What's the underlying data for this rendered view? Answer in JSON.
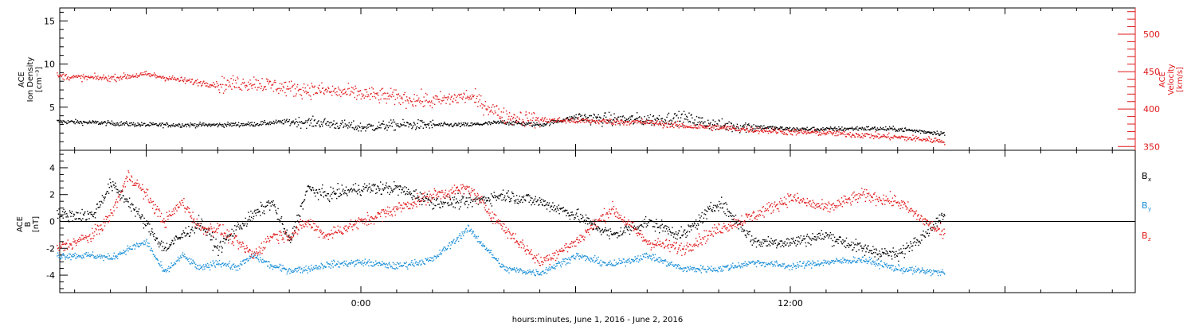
{
  "chart_data": [
    {
      "type": "scatter",
      "panel": "top",
      "xlabel": "hours:minutes, June  1, 2016 - June  2, 2016",
      "x_tick_labels": [
        "0:00",
        "12:00"
      ],
      "left_axis": {
        "label_lines": [
          "ACE",
          "Ion Density",
          "[cm⁻³]"
        ],
        "ylim": [
          0,
          16.5
        ],
        "tick_labels": [
          "5",
          "10",
          "15"
        ]
      },
      "right_axis": {
        "label_lines": [
          "ACE",
          "Velocity",
          "[km/s]"
        ],
        "ylim": [
          345,
          535
        ],
        "tick_labels": [
          "350",
          "400",
          "450",
          "500"
        ],
        "color": "#e0191b"
      },
      "series": [
        {
          "color": "#000000",
          "axis": "left",
          "x_hours": [
            -8.5,
            -7,
            -6,
            -5,
            -4,
            -3,
            -2,
            -1,
            0,
            1,
            2,
            3,
            4,
            5,
            6,
            7,
            8,
            9,
            10,
            11,
            12,
            13,
            14,
            15,
            16.3
          ],
          "values": [
            3.4,
            3.2,
            3.0,
            3.0,
            3.0,
            3.1,
            3.4,
            3.2,
            2.7,
            3.0,
            3.0,
            3.0,
            3.3,
            3.0,
            3.9,
            3.6,
            3.6,
            3.8,
            2.9,
            2.8,
            2.5,
            2.5,
            2.6,
            2.5,
            2.0
          ]
        },
        {
          "color": "#e0191b",
          "axis": "right",
          "x_hours": [
            -8.5,
            -8,
            -7,
            -6,
            -5,
            -4,
            -3,
            -2,
            -1,
            0,
            1,
            2,
            3,
            4,
            5,
            6,
            7,
            8,
            9,
            10,
            11,
            12,
            13,
            14,
            15,
            16.3
          ],
          "values": [
            445,
            443,
            442,
            447,
            439,
            433,
            436,
            428,
            425,
            421,
            416,
            411,
            418,
            391,
            386,
            385,
            384,
            383,
            378,
            376,
            373,
            370,
            369,
            366,
            363,
            358
          ]
        }
      ]
    },
    {
      "type": "scatter",
      "panel": "bottom",
      "xlabel": "hours:minutes, June  1, 2016 - June  2, 2016",
      "x_tick_labels": [
        "0:00",
        "12:00"
      ],
      "ylabel_lines": [
        "ACE",
        "B",
        "[nT]"
      ],
      "ylim": [
        -5.3,
        5.3
      ],
      "tick_labels": [
        "-4",
        "-2",
        "0",
        "2",
        "4"
      ],
      "legend": [
        "B",
        "B",
        "B"
      ],
      "legend_subscripts": [
        "x",
        "y",
        "z"
      ],
      "legend_placement": "right",
      "series": [
        {
          "name": "Bx",
          "color": "#000000",
          "x_hours": [
            -8.5,
            -7.5,
            -7,
            -6.5,
            -5.5,
            -4.5,
            -4,
            -3.5,
            -2.5,
            -2,
            -1.5,
            -1,
            0,
            1,
            2,
            3,
            4,
            5,
            6,
            7,
            8,
            9,
            10,
            11,
            12,
            13,
            14,
            15,
            16.3
          ],
          "values": [
            0.5,
            0.5,
            2.8,
            1.5,
            -2.0,
            0.0,
            -2.0,
            -0.5,
            1.5,
            -1.5,
            2.5,
            2.0,
            2.5,
            2.5,
            1.5,
            1.5,
            2.0,
            1.5,
            0.5,
            -1.0,
            0.0,
            -1.0,
            1.5,
            -1.5,
            -1.5,
            -1.0,
            -2.0,
            -2.5,
            0.5
          ]
        },
        {
          "name": "By",
          "color": "#1a8fd8",
          "x_hours": [
            -8.5,
            -7.5,
            -7,
            -6.5,
            -6,
            -5.5,
            -5,
            -4.5,
            -4,
            -3.5,
            -3,
            -2.5,
            -2,
            -1.5,
            -1,
            0,
            1,
            2,
            3,
            4,
            5,
            6,
            7,
            8,
            9,
            10,
            11,
            12,
            13,
            14,
            15,
            16.3
          ],
          "values": [
            -2.5,
            -2.5,
            -2.7,
            -2.0,
            -1.5,
            -3.8,
            -2.5,
            -3.5,
            -3.0,
            -3.4,
            -2.5,
            -3.3,
            -3.6,
            -3.5,
            -3.2,
            -3.0,
            -3.3,
            -2.8,
            -0.5,
            -3.5,
            -3.8,
            -2.5,
            -3.2,
            -2.5,
            -3.5,
            -3.5,
            -3.0,
            -3.3,
            -3.0,
            -2.8,
            -3.5,
            -3.8
          ]
        },
        {
          "name": "Bz",
          "color": "#e0191b",
          "x_hours": [
            -8.5,
            -8,
            -7.5,
            -7,
            -6.5,
            -6,
            -5.5,
            -5,
            -4.5,
            -4,
            -3.5,
            -3,
            -2.5,
            -2,
            -1.5,
            -1,
            0,
            1,
            2,
            3,
            4,
            5,
            6,
            7,
            8,
            9,
            10,
            11,
            12,
            13,
            14,
            15,
            16.3
          ],
          "values": [
            -2.0,
            -1.5,
            -1.0,
            0.5,
            3.5,
            2.0,
            0.0,
            1.5,
            -0.5,
            -0.5,
            -1.5,
            -2.5,
            -1.0,
            -1.0,
            0.0,
            -1.0,
            0.0,
            1.0,
            2.0,
            2.5,
            -0.5,
            -3.0,
            -1.5,
            1.0,
            -1.5,
            -2.0,
            -0.5,
            0.5,
            1.8,
            1.0,
            2.0,
            1.5,
            -1.0
          ]
        }
      ]
    }
  ]
}
